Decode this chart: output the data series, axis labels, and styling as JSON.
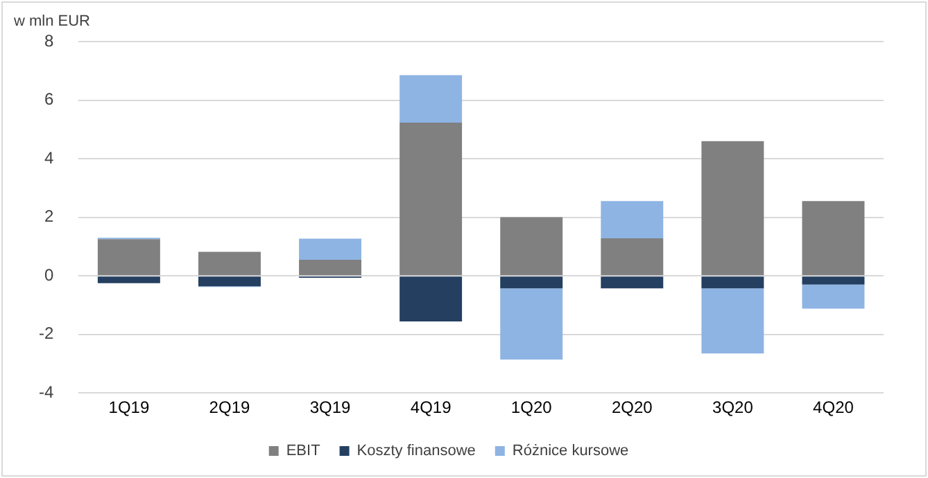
{
  "chart_data": {
    "type": "bar",
    "ylabel": "w mln EUR",
    "stacked": true,
    "categories": [
      "1Q19",
      "2Q19",
      "3Q19",
      "4Q19",
      "1Q20",
      "2Q20",
      "3Q20",
      "4Q20"
    ],
    "series": [
      {
        "name": "EBIT",
        "color": "#808080",
        "values": [
          1.25,
          0.82,
          0.55,
          5.23,
          2.0,
          1.28,
          4.6,
          2.55
        ]
      },
      {
        "name": "Koszty finansowe",
        "color": "#243f60",
        "values": [
          -0.25,
          -0.36,
          -0.07,
          -1.56,
          -0.43,
          -0.43,
          -0.43,
          -0.3
        ]
      },
      {
        "name": "Różnice kursowe",
        "color": "#8eb4e3",
        "values": [
          0.05,
          -0.02,
          0.72,
          1.62,
          -2.43,
          1.27,
          -2.22,
          -0.82
        ]
      }
    ],
    "ylim": [
      -4,
      8
    ],
    "yticks": [
      -4,
      -2,
      0,
      2,
      4,
      6,
      8
    ],
    "grid": "y",
    "legend": "bottom"
  }
}
